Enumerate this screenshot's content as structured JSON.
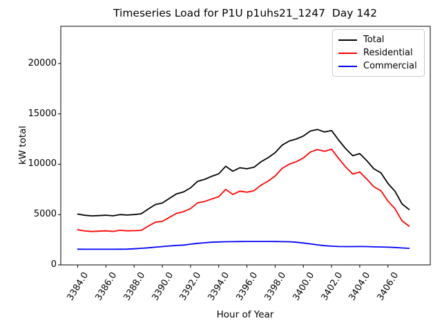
{
  "chart_data": {
    "type": "line",
    "title": "Timeseries Load for P1U p1uhs21_1247  Day 142",
    "xlabel": "Hour of Year",
    "ylabel": "kW total",
    "grid": false,
    "legend_position": "upper right",
    "xlim": [
      3382.8,
      3409.0
    ],
    "ylim": [
      0,
      23700
    ],
    "ytick_values": [
      0,
      5000,
      10000,
      15000,
      20000
    ],
    "ytick_labels": [
      "0",
      "5000",
      "10000",
      "15000",
      "20000"
    ],
    "xtick_values": [
      3384,
      3386,
      3388,
      3390,
      3392,
      3394,
      3396,
      3398,
      3400,
      3402,
      3404,
      3406
    ],
    "xtick_labels": [
      "3384.0",
      "3386.0",
      "3388.0",
      "3390.0",
      "3392.0",
      "3394.0",
      "3396.0",
      "3398.0",
      "3400.0",
      "3402.0",
      "3404.0",
      "3406.0"
    ],
    "x": [
      3384.0,
      3384.5,
      3385.0,
      3385.5,
      3386.0,
      3386.5,
      3387.0,
      3387.5,
      3388.0,
      3388.5,
      3389.0,
      3389.5,
      3390.0,
      3390.5,
      3391.0,
      3391.5,
      3392.0,
      3392.5,
      3393.0,
      3393.5,
      3394.0,
      3394.5,
      3395.0,
      3395.5,
      3396.0,
      3396.5,
      3397.0,
      3397.5,
      3398.0,
      3398.5,
      3399.0,
      3399.5,
      3400.0,
      3400.5,
      3401.0,
      3401.5,
      3402.0,
      3402.5,
      3403.0,
      3403.5,
      3404.0,
      3404.5,
      3405.0,
      3405.5,
      3406.0,
      3406.5,
      3407.0,
      3407.5
    ],
    "series": [
      {
        "name": "Total",
        "color": "#000000",
        "values": [
          5050,
          4930,
          4870,
          4900,
          4940,
          4880,
          5000,
          4950,
          5000,
          5080,
          5550,
          6000,
          6150,
          6600,
          7050,
          7250,
          7650,
          8300,
          8500,
          8800,
          9050,
          9800,
          9300,
          9650,
          9550,
          9700,
          10250,
          10650,
          11150,
          11900,
          12300,
          12500,
          12800,
          13300,
          13450,
          13200,
          13350,
          12400,
          11550,
          10850,
          11050,
          10350,
          9550,
          9150,
          8100,
          7300,
          6050,
          5500
        ]
      },
      {
        "name": "Residential",
        "color": "#ff0000",
        "values": [
          3490,
          3375,
          3320,
          3350,
          3385,
          3325,
          3440,
          3385,
          3400,
          3430,
          3850,
          4240,
          4330,
          4720,
          5120,
          5280,
          5590,
          6160,
          6300,
          6550,
          6770,
          7500,
          6990,
          7330,
          7220,
          7370,
          7920,
          8320,
          8830,
          9590,
          10000,
          10250,
          10620,
          11210,
          11460,
          11290,
          11490,
          10570,
          9730,
          9030,
          9220,
          8530,
          7760,
          7370,
          6340,
          5570,
          4370,
          3850
        ]
      },
      {
        "name": "Commercial",
        "color": "#0000ff",
        "values": [
          1560,
          1555,
          1550,
          1550,
          1555,
          1555,
          1560,
          1565,
          1600,
          1650,
          1700,
          1760,
          1820,
          1880,
          1930,
          1970,
          2060,
          2140,
          2200,
          2250,
          2280,
          2300,
          2310,
          2320,
          2330,
          2330,
          2330,
          2330,
          2320,
          2310,
          2300,
          2250,
          2180,
          2090,
          1990,
          1910,
          1860,
          1830,
          1820,
          1820,
          1830,
          1820,
          1790,
          1780,
          1760,
          1730,
          1680,
          1650
        ]
      }
    ]
  }
}
